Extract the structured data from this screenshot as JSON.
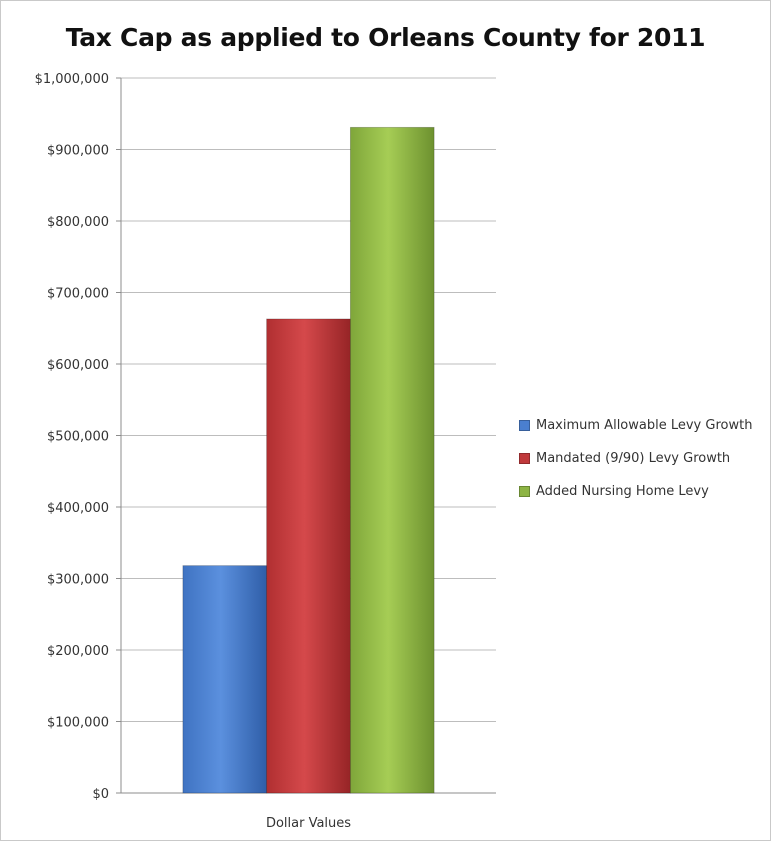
{
  "chart_data": {
    "type": "bar",
    "title": "Tax Cap as applied to Orleans County for 2011",
    "categories": [
      "Dollar Values"
    ],
    "series": [
      {
        "name": "Maximum Allowable Levy Growth",
        "values": [
          318000
        ],
        "color": "#4a7fcf"
      },
      {
        "name": "Mandated (9/90) Levy Growth",
        "values": [
          663000
        ],
        "color": "#c0393b"
      },
      {
        "name": "Added Nursing Home Levy",
        "values": [
          931000
        ],
        "color": "#8db444"
      }
    ],
    "ylim": [
      0,
      1000000
    ],
    "yticks": [
      "$0",
      "$100,000",
      "$200,000",
      "$300,000",
      "$400,000",
      "$500,000",
      "$600,000",
      "$700,000",
      "$800,000",
      "$900,000",
      "$1,000,000"
    ],
    "grid": true,
    "legend_position": "right"
  }
}
